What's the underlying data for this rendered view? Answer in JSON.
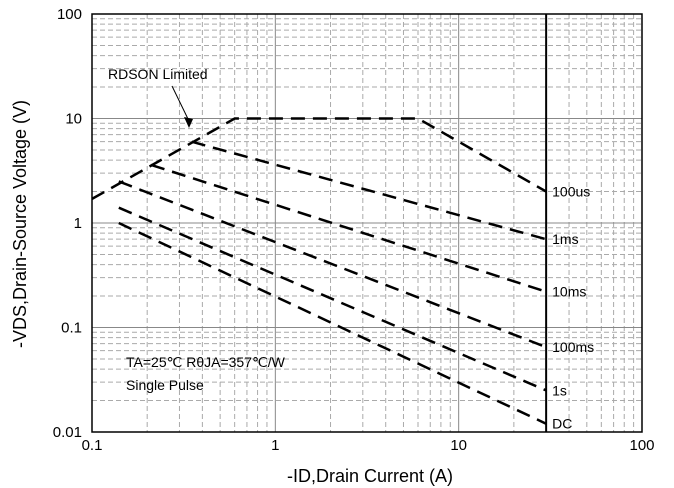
{
  "chart_data": {
    "type": "line",
    "title": "",
    "xlabel": "-ID,Drain Current (A)",
    "ylabel": "-VDS,Drain-Source Voltage (V)",
    "x_scale": "log",
    "y_scale": "log",
    "xlim": [
      0.1,
      100
    ],
    "ylim": [
      0.01,
      100
    ],
    "x_ticks": [
      "0.1",
      "1",
      "10",
      "100"
    ],
    "y_ticks": [
      "0.01",
      "0.1",
      "1",
      "10",
      "100"
    ],
    "grid": true,
    "vertical_marker": {
      "x": 30
    },
    "annotations": {
      "rdson": "RDSON Limited",
      "conditions_line1": "TA=25℃  RθJA=357℃/W",
      "conditions_line2": "Single Pulse"
    },
    "series": [
      {
        "name": "100us",
        "x": [
          0.1,
          0.6,
          6.0,
          30
        ],
        "y": [
          1.7,
          10,
          10,
          2.0
        ]
      },
      {
        "name": "1ms",
        "x": [
          0.35,
          30
        ],
        "y": [
          6.0,
          0.7
        ]
      },
      {
        "name": "10ms",
        "x": [
          0.21,
          30
        ],
        "y": [
          3.6,
          0.22
        ]
      },
      {
        "name": "100ms",
        "x": [
          0.14,
          30
        ],
        "y": [
          2.5,
          0.065
        ]
      },
      {
        "name": "1s",
        "x": [
          0.14,
          30
        ],
        "y": [
          1.4,
          0.025
        ]
      },
      {
        "name": "DC",
        "x": [
          0.14,
          30
        ],
        "y": [
          1.0,
          0.012
        ]
      }
    ]
  }
}
